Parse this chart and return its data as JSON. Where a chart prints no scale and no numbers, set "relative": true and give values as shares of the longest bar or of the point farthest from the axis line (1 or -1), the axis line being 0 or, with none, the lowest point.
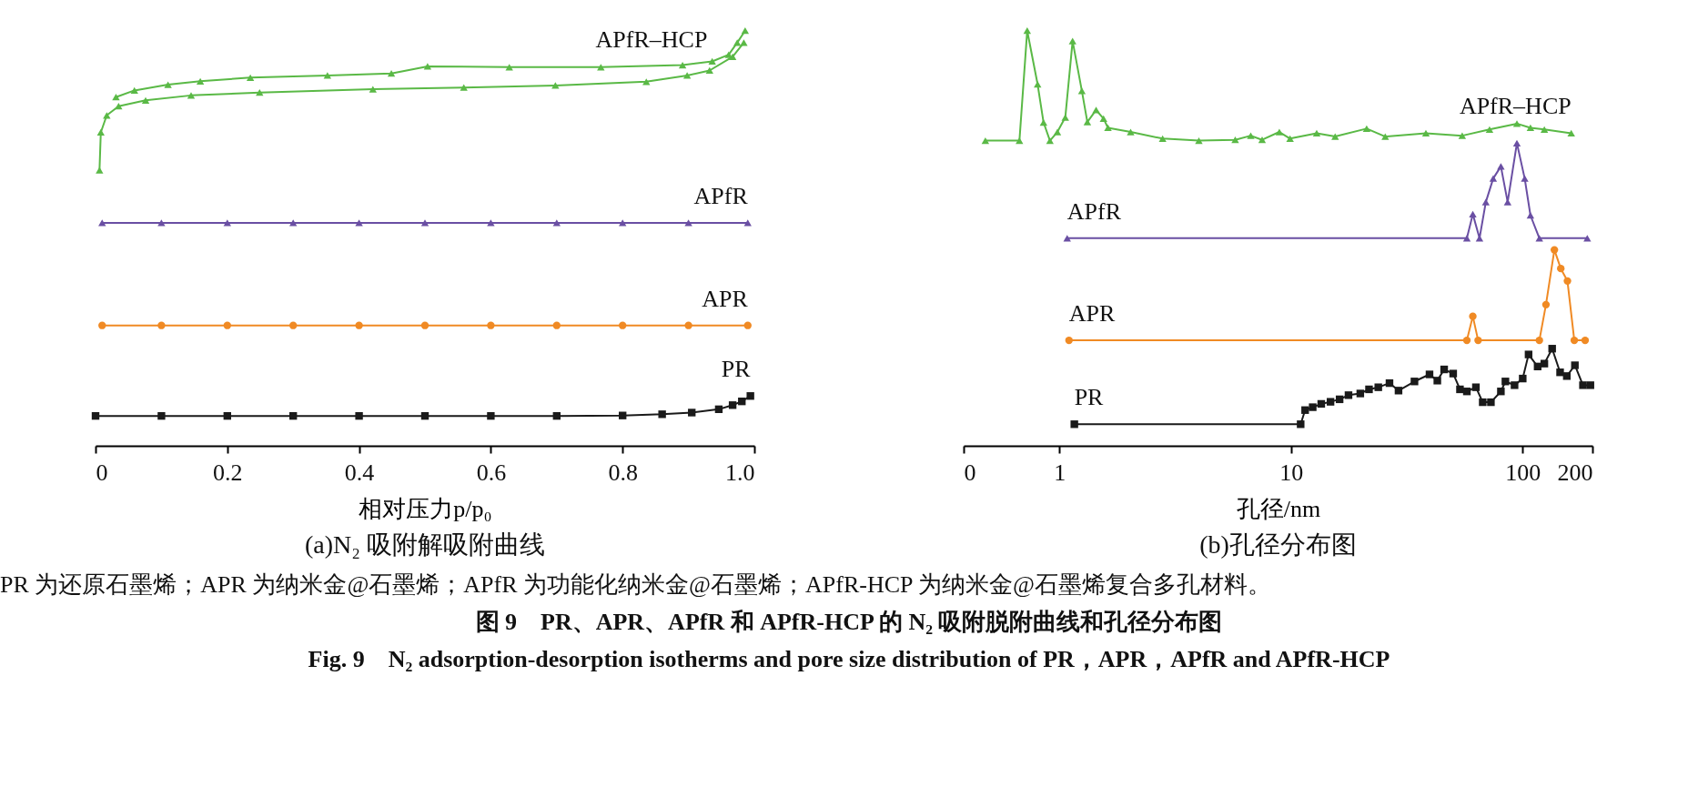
{
  "chart_data": [
    {
      "type": "line",
      "title": "(a)N₂ 吸附解吸附曲线",
      "xlabel": "相对压力p/p₀",
      "relative": true,
      "xlim": [
        0,
        1
      ],
      "xticks": [
        0,
        0.2,
        0.4,
        0.6,
        0.8,
        {
          "value": 1,
          "label": "1.0"
        }
      ],
      "tick_labels": "x",
      "grid": false,
      "series": [
        {
          "name": "APfR–HCP",
          "color": "#5ab946",
          "marker": "triangle",
          "x": [
            0.006,
            0.008,
            0.017,
            0.035,
            0.076,
            0.145,
            0.249,
            0.421,
            0.559,
            0.698,
            0.836,
            0.898,
            0.932,
            0.967,
            0.984
          ],
          "values": [
            0.664,
            0.755,
            0.796,
            0.818,
            0.832,
            0.844,
            0.851,
            0.859,
            0.863,
            0.868,
            0.877,
            0.892,
            0.904,
            0.937,
            0.971
          ]
        },
        {
          "color": "#5ab946",
          "marker": "triangle",
          "x": [
            0.031,
            0.059,
            0.11,
            0.159,
            0.235,
            0.352,
            0.449,
            0.504,
            0.628,
            0.767,
            0.891,
            0.936,
            0.961,
            0.974,
            0.986
          ],
          "values": [
            0.84,
            0.856,
            0.87,
            0.878,
            0.887,
            0.892,
            0.897,
            0.914,
            0.912,
            0.912,
            0.917,
            0.926,
            0.942,
            0.971,
            1.0
          ]
        },
        {
          "name": "APfR",
          "color": "#6a4fa3",
          "marker": "triangle",
          "x": [
            0.01,
            0.1,
            0.2,
            0.3,
            0.4,
            0.5,
            0.6,
            0.7,
            0.8,
            0.9,
            0.99
          ],
          "values": [
            0.537,
            0.537,
            0.537,
            0.537,
            0.537,
            0.537,
            0.537,
            0.537,
            0.537,
            0.537,
            0.537
          ]
        },
        {
          "name": "APR",
          "color": "#f08a24",
          "marker": "circle",
          "x": [
            0.01,
            0.1,
            0.2,
            0.3,
            0.4,
            0.5,
            0.6,
            0.7,
            0.8,
            0.9,
            0.99
          ],
          "values": [
            0.29,
            0.29,
            0.29,
            0.29,
            0.29,
            0.29,
            0.29,
            0.29,
            0.29,
            0.29,
            0.29
          ]
        },
        {
          "name": "PR",
          "color": "#1a1a1a",
          "marker": "square",
          "x": [
            0,
            0.1,
            0.2,
            0.3,
            0.4,
            0.5,
            0.6,
            0.7,
            0.8,
            0.86,
            0.905,
            0.946,
            0.967,
            0.981,
            0.994
          ],
          "values": [
            0.072,
            0.072,
            0.072,
            0.072,
            0.072,
            0.072,
            0.072,
            0.072,
            0.073,
            0.076,
            0.08,
            0.088,
            0.098,
            0.107,
            0.12
          ]
        }
      ]
    },
    {
      "type": "line",
      "title": "(b)孔径分布图",
      "xlabel": "孔径/nm",
      "relative": true,
      "log": "x",
      "xlim": [
        0.386,
        200
      ],
      "xticks": [
        {
          "value": 0.386,
          "label": "0"
        },
        1,
        10,
        100,
        200
      ],
      "tick_labels": "x",
      "grid": false,
      "annotations": [
        "PR 为还原石墨烯；APR 为纳米金@石墨烯；APfR 为功能化纳米金@石墨烯；APfR-HCP 为纳米金@石墨烯复合多孔材料。",
        "图 9　PR、APR、APfR 和 APfR-HCP 的 N₂ 吸附脱附曲线和孔径分布图",
        "Fig. 9　N₂ adsorption-desorption isotherms and pore size distribution of PR，APR，APfR and APfR-HCP"
      ],
      "series": [
        {
          "name": "APfR–HCP",
          "color": "#5ab946",
          "marker": "triangle",
          "x": [
            0.479,
            0.672,
            0.726,
            0.805,
            0.854,
            0.91,
            0.98,
            1.06,
            1.14,
            1.25,
            1.32,
            1.44,
            1.55,
            1.62,
            2.03,
            2.79,
            4.0,
            5.74,
            6.7,
            7.5,
            8.9,
            9.9,
            12.9,
            15.5,
            21.2,
            25.5,
            38.2,
            54.8,
            71.9,
            94.4,
            108,
            124,
            162
          ],
          "values": [
            0.735,
            0.735,
            1.0,
            0.871,
            0.779,
            0.735,
            0.756,
            0.791,
            0.975,
            0.855,
            0.78,
            0.809,
            0.788,
            0.766,
            0.756,
            0.74,
            0.735,
            0.737,
            0.747,
            0.737,
            0.756,
            0.74,
            0.753,
            0.745,
            0.764,
            0.745,
            0.753,
            0.747,
            0.762,
            0.776,
            0.766,
            0.762,
            0.753
          ]
        },
        {
          "name": "APfR",
          "color": "#6a4fa3",
          "marker": "triangle",
          "x": [
            1.08,
            57.4,
            60.9,
            65.1,
            69.3,
            74.6,
            80.5,
            86.1,
            94.4,
            102,
            108,
            118,
            190
          ],
          "values": [
            0.5,
            0.5,
            0.558,
            0.5,
            0.587,
            0.644,
            0.673,
            0.587,
            0.729,
            0.644,
            0.555,
            0.5,
            0.5
          ]
        },
        {
          "name": "APR",
          "color": "#f08a24",
          "marker": "circle",
          "x": [
            1.1,
            57.4,
            60.9,
            64.2,
            118,
            126,
            137,
            146,
            156,
            167,
            186
          ],
          "values": [
            0.254,
            0.254,
            0.312,
            0.254,
            0.254,
            0.34,
            0.472,
            0.427,
            0.397,
            0.254,
            0.254
          ]
        },
        {
          "name": "PR",
          "color": "#1a1a1a",
          "marker": "square",
          "x": [
            1.16,
            11.0,
            11.5,
            12.4,
            13.5,
            14.8,
            16.2,
            17.7,
            19.9,
            21.7,
            23.8,
            26.6,
            29.1,
            34.1,
            39.6,
            42.8,
            45.8,
            50.1,
            53.6,
            57.4,
            62.8,
            67.2,
            72.9,
            80.5,
            84.2,
            92.2,
            100,
            106,
            116,
            124,
            134,
            145,
            155,
            168,
            182,
            196
          ],
          "values": [
            0.052,
            0.052,
            0.086,
            0.093,
            0.101,
            0.106,
            0.112,
            0.122,
            0.126,
            0.136,
            0.141,
            0.151,
            0.133,
            0.155,
            0.172,
            0.157,
            0.184,
            0.174,
            0.136,
            0.131,
            0.141,
            0.105,
            0.105,
            0.131,
            0.155,
            0.146,
            0.162,
            0.22,
            0.191,
            0.198,
            0.234,
            0.177,
            0.168,
            0.194,
            0.146,
            0.146
          ]
        }
      ]
    }
  ]
}
